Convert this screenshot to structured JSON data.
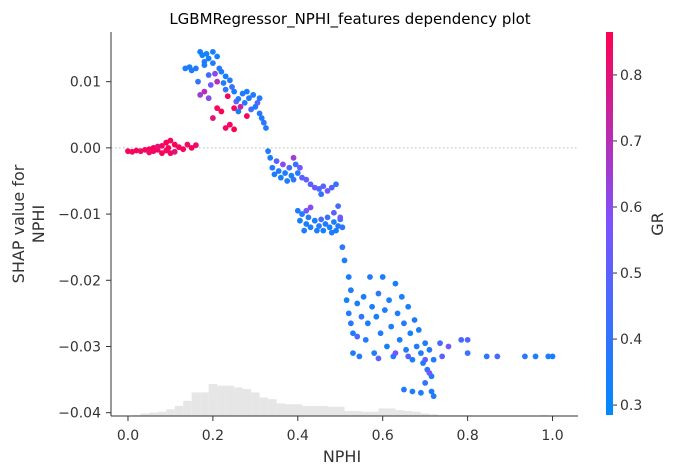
{
  "chart_data": {
    "type": "scatter",
    "title": "LGBMRegressor_NPHI_features dependency plot",
    "xlabel": "NPHI",
    "ylabel_lines": [
      "SHAP value for",
      "NPHI"
    ],
    "colorbar_label": "GR",
    "xlim": [
      -0.04,
      1.06
    ],
    "ylim": [
      -0.0405,
      0.0175
    ],
    "xticks": [
      0.0,
      0.2,
      0.4,
      0.6,
      0.8,
      1.0
    ],
    "xtick_labels": [
      "0.0",
      "0.2",
      "0.4",
      "0.6",
      "0.8",
      "1.0"
    ],
    "yticks": [
      0.01,
      0.0,
      -0.01,
      -0.02,
      -0.03,
      -0.04
    ],
    "ytick_labels": [
      "0.01",
      "0.00",
      "−0.01",
      "−0.02",
      "−0.03",
      "−0.04"
    ],
    "color_range": [
      0.285,
      0.865
    ],
    "colorbar_ticks": [
      0.3,
      0.4,
      0.5,
      0.6,
      0.7,
      0.8
    ],
    "colorbar_tick_labels": [
      "0.3",
      "0.4",
      "0.5",
      "0.6",
      "0.7",
      "0.8"
    ],
    "colors": {
      "low": "#008afb",
      "mid": "#7c52ff",
      "high": "#ff0052",
      "histogram": "#e6e6e6",
      "zero_line": "#bbbbbb"
    },
    "histogram": {
      "bins": [
        {
          "x": 0.0,
          "count": 0
        },
        {
          "x": 0.02,
          "count": 1
        },
        {
          "x": 0.04,
          "count": 3
        },
        {
          "x": 0.06,
          "count": 4
        },
        {
          "x": 0.08,
          "count": 5
        },
        {
          "x": 0.1,
          "count": 8
        },
        {
          "x": 0.12,
          "count": 12
        },
        {
          "x": 0.14,
          "count": 18
        },
        {
          "x": 0.16,
          "count": 28
        },
        {
          "x": 0.18,
          "count": 28
        },
        {
          "x": 0.2,
          "count": 38
        },
        {
          "x": 0.22,
          "count": 36
        },
        {
          "x": 0.24,
          "count": 36
        },
        {
          "x": 0.26,
          "count": 34
        },
        {
          "x": 0.28,
          "count": 32
        },
        {
          "x": 0.3,
          "count": 28
        },
        {
          "x": 0.32,
          "count": 22
        },
        {
          "x": 0.34,
          "count": 20
        },
        {
          "x": 0.36,
          "count": 15
        },
        {
          "x": 0.38,
          "count": 14
        },
        {
          "x": 0.4,
          "count": 14
        },
        {
          "x": 0.42,
          "count": 12
        },
        {
          "x": 0.44,
          "count": 12
        },
        {
          "x": 0.46,
          "count": 12
        },
        {
          "x": 0.48,
          "count": 11
        },
        {
          "x": 0.5,
          "count": 11
        },
        {
          "x": 0.52,
          "count": 6
        },
        {
          "x": 0.54,
          "count": 6
        },
        {
          "x": 0.56,
          "count": 5
        },
        {
          "x": 0.58,
          "count": 5
        },
        {
          "x": 0.6,
          "count": 9
        },
        {
          "x": 0.62,
          "count": 9
        },
        {
          "x": 0.64,
          "count": 7
        },
        {
          "x": 0.66,
          "count": 6
        },
        {
          "x": 0.68,
          "count": 5
        },
        {
          "x": 0.7,
          "count": 3
        },
        {
          "x": 0.72,
          "count": 2
        },
        {
          "x": 0.74,
          "count": 1
        },
        {
          "x": 0.76,
          "count": 1
        },
        {
          "x": 0.78,
          "count": 1
        },
        {
          "x": 0.8,
          "count": 1
        },
        {
          "x": 0.82,
          "count": 0
        },
        {
          "x": 0.84,
          "count": 0
        },
        {
          "x": 0.86,
          "count": 0
        },
        {
          "x": 0.88,
          "count": 0
        },
        {
          "x": 0.9,
          "count": 0
        },
        {
          "x": 0.92,
          "count": 0
        },
        {
          "x": 0.94,
          "count": 0
        },
        {
          "x": 0.96,
          "count": 0
        },
        {
          "x": 0.98,
          "count": 1
        }
      ]
    },
    "points": [
      {
        "x": 0.0,
        "y": -0.0005,
        "c": 0.85
      },
      {
        "x": 0.01,
        "y": -0.0006,
        "c": 0.84
      },
      {
        "x": 0.02,
        "y": -0.0004,
        "c": 0.86
      },
      {
        "x": 0.03,
        "y": -0.0005,
        "c": 0.83
      },
      {
        "x": 0.04,
        "y": -0.0003,
        "c": 0.85
      },
      {
        "x": 0.05,
        "y": -0.0002,
        "c": 0.84
      },
      {
        "x": 0.05,
        "y": -0.0007,
        "c": 0.82
      },
      {
        "x": 0.06,
        "y": 0.0,
        "c": 0.86
      },
      {
        "x": 0.06,
        "y": -0.0005,
        "c": 0.84
      },
      {
        "x": 0.07,
        "y": -0.0003,
        "c": 0.85
      },
      {
        "x": 0.07,
        "y": 0.0002,
        "c": 0.8
      },
      {
        "x": 0.08,
        "y": -0.0008,
        "c": 0.86
      },
      {
        "x": 0.08,
        "y": 0.0003,
        "c": 0.84
      },
      {
        "x": 0.09,
        "y": 0.0008,
        "c": 0.86
      },
      {
        "x": 0.09,
        "y": -0.0004,
        "c": 0.83
      },
      {
        "x": 0.095,
        "y": 0.0,
        "c": 0.85
      },
      {
        "x": 0.1,
        "y": 0.0011,
        "c": 0.84
      },
      {
        "x": 0.1,
        "y": -0.0008,
        "c": 0.85
      },
      {
        "x": 0.11,
        "y": 0.0005,
        "c": 0.86
      },
      {
        "x": 0.11,
        "y": -0.0006,
        "c": 0.8
      },
      {
        "x": 0.12,
        "y": 0.0001,
        "c": 0.84
      },
      {
        "x": 0.13,
        "y": -0.0002,
        "c": 0.85
      },
      {
        "x": 0.14,
        "y": 0.0005,
        "c": 0.83
      },
      {
        "x": 0.15,
        "y": 0.0,
        "c": 0.86
      },
      {
        "x": 0.16,
        "y": 0.0004,
        "c": 0.82
      },
      {
        "x": 0.135,
        "y": 0.012,
        "c": 0.36
      },
      {
        "x": 0.145,
        "y": 0.0122,
        "c": 0.34
      },
      {
        "x": 0.15,
        "y": 0.0117,
        "c": 0.37
      },
      {
        "x": 0.16,
        "y": 0.012,
        "c": 0.35
      },
      {
        "x": 0.165,
        "y": 0.01,
        "c": 0.4
      },
      {
        "x": 0.17,
        "y": 0.0145,
        "c": 0.33
      },
      {
        "x": 0.175,
        "y": 0.014,
        "c": 0.34
      },
      {
        "x": 0.18,
        "y": 0.013,
        "c": 0.36
      },
      {
        "x": 0.18,
        "y": 0.0125,
        "c": 0.35
      },
      {
        "x": 0.185,
        "y": 0.0142,
        "c": 0.32
      },
      {
        "x": 0.19,
        "y": 0.0135,
        "c": 0.33
      },
      {
        "x": 0.19,
        "y": 0.011,
        "c": 0.45
      },
      {
        "x": 0.195,
        "y": 0.0095,
        "c": 0.55
      },
      {
        "x": 0.2,
        "y": 0.0145,
        "c": 0.34
      },
      {
        "x": 0.2,
        "y": 0.0128,
        "c": 0.36
      },
      {
        "x": 0.205,
        "y": 0.0112,
        "c": 0.62
      },
      {
        "x": 0.21,
        "y": 0.0138,
        "c": 0.33
      },
      {
        "x": 0.21,
        "y": 0.01,
        "c": 0.7
      },
      {
        "x": 0.215,
        "y": 0.012,
        "c": 0.38
      },
      {
        "x": 0.22,
        "y": 0.0115,
        "c": 0.35
      },
      {
        "x": 0.225,
        "y": 0.0098,
        "c": 0.36
      },
      {
        "x": 0.23,
        "y": 0.0108,
        "c": 0.34
      },
      {
        "x": 0.23,
        "y": 0.0088,
        "c": 0.4
      },
      {
        "x": 0.235,
        "y": 0.0078,
        "c": 0.85
      },
      {
        "x": 0.24,
        "y": 0.0102,
        "c": 0.36
      },
      {
        "x": 0.245,
        "y": 0.0092,
        "c": 0.42
      },
      {
        "x": 0.25,
        "y": 0.0085,
        "c": 0.35
      },
      {
        "x": 0.25,
        "y": 0.006,
        "c": 0.84
      },
      {
        "x": 0.255,
        "y": 0.007,
        "c": 0.55
      },
      {
        "x": 0.26,
        "y": 0.0074,
        "c": 0.36
      },
      {
        "x": 0.26,
        "y": 0.0055,
        "c": 0.34
      },
      {
        "x": 0.265,
        "y": 0.0062,
        "c": 0.72
      },
      {
        "x": 0.27,
        "y": 0.0082,
        "c": 0.35
      },
      {
        "x": 0.275,
        "y": 0.0068,
        "c": 0.37
      },
      {
        "x": 0.28,
        "y": 0.0085,
        "c": 0.34
      },
      {
        "x": 0.28,
        "y": 0.0048,
        "c": 0.85
      },
      {
        "x": 0.285,
        "y": 0.0075,
        "c": 0.36
      },
      {
        "x": 0.29,
        "y": 0.0058,
        "c": 0.45
      },
      {
        "x": 0.295,
        "y": 0.008,
        "c": 0.35
      },
      {
        "x": 0.3,
        "y": 0.0062,
        "c": 0.34
      },
      {
        "x": 0.305,
        "y": 0.0068,
        "c": 0.5
      },
      {
        "x": 0.31,
        "y": 0.0075,
        "c": 0.36
      },
      {
        "x": 0.31,
        "y": 0.0052,
        "c": 0.38
      },
      {
        "x": 0.315,
        "y": 0.0045,
        "c": 0.35
      },
      {
        "x": 0.32,
        "y": 0.0038,
        "c": 0.4
      },
      {
        "x": 0.325,
        "y": 0.003,
        "c": 0.36
      },
      {
        "x": 0.21,
        "y": 0.006,
        "c": 0.84
      },
      {
        "x": 0.22,
        "y": 0.0055,
        "c": 0.86
      },
      {
        "x": 0.2,
        "y": 0.0045,
        "c": 0.8
      },
      {
        "x": 0.24,
        "y": 0.0035,
        "c": 0.85
      },
      {
        "x": 0.23,
        "y": 0.003,
        "c": 0.83
      },
      {
        "x": 0.25,
        "y": 0.0028,
        "c": 0.86
      },
      {
        "x": 0.18,
        "y": 0.0085,
        "c": 0.7
      },
      {
        "x": 0.19,
        "y": 0.0075,
        "c": 0.6
      },
      {
        "x": 0.17,
        "y": 0.008,
        "c": 0.65
      },
      {
        "x": 0.33,
        "y": -0.0005,
        "c": 0.36
      },
      {
        "x": 0.335,
        "y": -0.0015,
        "c": 0.34
      },
      {
        "x": 0.34,
        "y": -0.003,
        "c": 0.36
      },
      {
        "x": 0.345,
        "y": -0.004,
        "c": 0.35
      },
      {
        "x": 0.35,
        "y": -0.002,
        "c": 0.5
      },
      {
        "x": 0.355,
        "y": -0.0035,
        "c": 0.36
      },
      {
        "x": 0.36,
        "y": -0.0045,
        "c": 0.34
      },
      {
        "x": 0.365,
        "y": -0.0025,
        "c": 0.6
      },
      {
        "x": 0.37,
        "y": -0.0038,
        "c": 0.35
      },
      {
        "x": 0.375,
        "y": -0.005,
        "c": 0.36
      },
      {
        "x": 0.38,
        "y": -0.003,
        "c": 0.45
      },
      {
        "x": 0.385,
        "y": -0.0042,
        "c": 0.34
      },
      {
        "x": 0.39,
        "y": -0.0048,
        "c": 0.38
      },
      {
        "x": 0.39,
        "y": -0.0015,
        "c": 0.65
      },
      {
        "x": 0.395,
        "y": -0.0025,
        "c": 0.4
      },
      {
        "x": 0.4,
        "y": -0.0038,
        "c": 0.36
      },
      {
        "x": 0.405,
        "y": -0.003,
        "c": 0.55
      },
      {
        "x": 0.41,
        "y": -0.0045,
        "c": 0.5
      },
      {
        "x": 0.42,
        "y": -0.0048,
        "c": 0.52
      },
      {
        "x": 0.43,
        "y": -0.0055,
        "c": 0.48
      },
      {
        "x": 0.44,
        "y": -0.006,
        "c": 0.55
      },
      {
        "x": 0.45,
        "y": -0.0062,
        "c": 0.45
      },
      {
        "x": 0.455,
        "y": -0.007,
        "c": 0.4
      },
      {
        "x": 0.46,
        "y": -0.0058,
        "c": 0.5
      },
      {
        "x": 0.47,
        "y": -0.0065,
        "c": 0.55
      },
      {
        "x": 0.48,
        "y": -0.006,
        "c": 0.48
      },
      {
        "x": 0.49,
        "y": -0.0055,
        "c": 0.42
      },
      {
        "x": 0.4,
        "y": -0.0095,
        "c": 0.36
      },
      {
        "x": 0.405,
        "y": -0.011,
        "c": 0.34
      },
      {
        "x": 0.41,
        "y": -0.01,
        "c": 0.36
      },
      {
        "x": 0.415,
        "y": -0.0125,
        "c": 0.35
      },
      {
        "x": 0.42,
        "y": -0.0115,
        "c": 0.34
      },
      {
        "x": 0.425,
        "y": -0.0105,
        "c": 0.38
      },
      {
        "x": 0.43,
        "y": -0.012,
        "c": 0.36
      },
      {
        "x": 0.44,
        "y": -0.011,
        "c": 0.35
      },
      {
        "x": 0.445,
        "y": -0.0125,
        "c": 0.34
      },
      {
        "x": 0.45,
        "y": -0.0118,
        "c": 0.37
      },
      {
        "x": 0.455,
        "y": -0.0108,
        "c": 0.45
      },
      {
        "x": 0.46,
        "y": -0.0125,
        "c": 0.35
      },
      {
        "x": 0.465,
        "y": -0.0115,
        "c": 0.36
      },
      {
        "x": 0.47,
        "y": -0.0105,
        "c": 0.42
      },
      {
        "x": 0.475,
        "y": -0.012,
        "c": 0.34
      },
      {
        "x": 0.48,
        "y": -0.0128,
        "c": 0.36
      },
      {
        "x": 0.485,
        "y": -0.0112,
        "c": 0.35
      },
      {
        "x": 0.49,
        "y": -0.0125,
        "c": 0.34
      },
      {
        "x": 0.495,
        "y": -0.0118,
        "c": 0.38
      },
      {
        "x": 0.5,
        "y": -0.0108,
        "c": 0.36
      },
      {
        "x": 0.42,
        "y": -0.0095,
        "c": 0.55
      },
      {
        "x": 0.43,
        "y": -0.009,
        "c": 0.6
      },
      {
        "x": 0.485,
        "y": -0.0098,
        "c": 0.5
      },
      {
        "x": 0.495,
        "y": -0.0088,
        "c": 0.45
      },
      {
        "x": 0.5,
        "y": -0.0105,
        "c": 0.55
      },
      {
        "x": 0.505,
        "y": -0.012,
        "c": 0.4
      },
      {
        "x": 0.505,
        "y": -0.015,
        "c": 0.4
      },
      {
        "x": 0.51,
        "y": -0.017,
        "c": 0.36
      },
      {
        "x": 0.52,
        "y": -0.0195,
        "c": 0.35
      },
      {
        "x": 0.525,
        "y": -0.0215,
        "c": 0.36
      },
      {
        "x": 0.515,
        "y": -0.023,
        "c": 0.34
      },
      {
        "x": 0.52,
        "y": -0.025,
        "c": 0.36
      },
      {
        "x": 0.525,
        "y": -0.0265,
        "c": 0.38
      },
      {
        "x": 0.53,
        "y": -0.028,
        "c": 0.35
      },
      {
        "x": 0.53,
        "y": -0.031,
        "c": 0.36
      },
      {
        "x": 0.54,
        "y": -0.0235,
        "c": 0.34
      },
      {
        "x": 0.545,
        "y": -0.0315,
        "c": 0.36
      },
      {
        "x": 0.55,
        "y": -0.0255,
        "c": 0.4
      },
      {
        "x": 0.555,
        "y": -0.0225,
        "c": 0.35
      },
      {
        "x": 0.56,
        "y": -0.029,
        "c": 0.36
      },
      {
        "x": 0.565,
        "y": -0.0265,
        "c": 0.34
      },
      {
        "x": 0.57,
        "y": -0.0195,
        "c": 0.36
      },
      {
        "x": 0.575,
        "y": -0.024,
        "c": 0.35
      },
      {
        "x": 0.58,
        "y": -0.031,
        "c": 0.36
      },
      {
        "x": 0.585,
        "y": -0.0255,
        "c": 0.34
      },
      {
        "x": 0.59,
        "y": -0.022,
        "c": 0.4
      },
      {
        "x": 0.595,
        "y": -0.028,
        "c": 0.36
      },
      {
        "x": 0.6,
        "y": -0.0195,
        "c": 0.35
      },
      {
        "x": 0.605,
        "y": -0.0245,
        "c": 0.36
      },
      {
        "x": 0.61,
        "y": -0.03,
        "c": 0.34
      },
      {
        "x": 0.615,
        "y": -0.023,
        "c": 0.36
      },
      {
        "x": 0.62,
        "y": -0.027,
        "c": 0.35
      },
      {
        "x": 0.625,
        "y": -0.0315,
        "c": 0.36
      },
      {
        "x": 0.63,
        "y": -0.0205,
        "c": 0.34
      },
      {
        "x": 0.635,
        "y": -0.025,
        "c": 0.36
      },
      {
        "x": 0.64,
        "y": -0.029,
        "c": 0.35
      },
      {
        "x": 0.645,
        "y": -0.0225,
        "c": 0.36
      },
      {
        "x": 0.65,
        "y": -0.0265,
        "c": 0.38
      },
      {
        "x": 0.655,
        "y": -0.0305,
        "c": 0.36
      },
      {
        "x": 0.66,
        "y": -0.024,
        "c": 0.35
      },
      {
        "x": 0.665,
        "y": -0.028,
        "c": 0.34
      },
      {
        "x": 0.67,
        "y": -0.032,
        "c": 0.36
      },
      {
        "x": 0.675,
        "y": -0.026,
        "c": 0.35
      },
      {
        "x": 0.68,
        "y": -0.03,
        "c": 0.36
      },
      {
        "x": 0.685,
        "y": -0.0275,
        "c": 0.34
      },
      {
        "x": 0.69,
        "y": -0.031,
        "c": 0.36
      },
      {
        "x": 0.695,
        "y": -0.0325,
        "c": 0.35
      },
      {
        "x": 0.7,
        "y": -0.0295,
        "c": 0.36
      },
      {
        "x": 0.705,
        "y": -0.0335,
        "c": 0.38
      },
      {
        "x": 0.71,
        "y": -0.0305,
        "c": 0.36
      },
      {
        "x": 0.715,
        "y": -0.0345,
        "c": 0.35
      },
      {
        "x": 0.72,
        "y": -0.032,
        "c": 0.36
      },
      {
        "x": 0.54,
        "y": -0.0285,
        "c": 0.45
      },
      {
        "x": 0.59,
        "y": -0.0318,
        "c": 0.5
      },
      {
        "x": 0.63,
        "y": -0.031,
        "c": 0.55
      },
      {
        "x": 0.66,
        "y": -0.0315,
        "c": 0.48
      },
      {
        "x": 0.7,
        "y": -0.032,
        "c": 0.5
      },
      {
        "x": 0.65,
        "y": -0.0365,
        "c": 0.36
      },
      {
        "x": 0.67,
        "y": -0.0368,
        "c": 0.35
      },
      {
        "x": 0.69,
        "y": -0.037,
        "c": 0.36
      },
      {
        "x": 0.715,
        "y": -0.0368,
        "c": 0.34
      },
      {
        "x": 0.72,
        "y": -0.0375,
        "c": 0.36
      },
      {
        "x": 0.7,
        "y": -0.0355,
        "c": 0.4
      },
      {
        "x": 0.71,
        "y": -0.034,
        "c": 0.55
      },
      {
        "x": 0.735,
        "y": -0.0295,
        "c": 0.45
      },
      {
        "x": 0.74,
        "y": -0.0315,
        "c": 0.5
      },
      {
        "x": 0.755,
        "y": -0.03,
        "c": 0.55
      },
      {
        "x": 0.785,
        "y": -0.029,
        "c": 0.45
      },
      {
        "x": 0.8,
        "y": -0.029,
        "c": 0.48
      },
      {
        "x": 0.8,
        "y": -0.031,
        "c": 0.42
      },
      {
        "x": 0.845,
        "y": -0.0315,
        "c": 0.4
      },
      {
        "x": 0.87,
        "y": -0.0315,
        "c": 0.45
      },
      {
        "x": 0.935,
        "y": -0.0315,
        "c": 0.38
      },
      {
        "x": 0.96,
        "y": -0.0315,
        "c": 0.36
      },
      {
        "x": 0.99,
        "y": -0.0315,
        "c": 0.35
      },
      {
        "x": 1.0,
        "y": -0.0315,
        "c": 0.34
      }
    ]
  }
}
